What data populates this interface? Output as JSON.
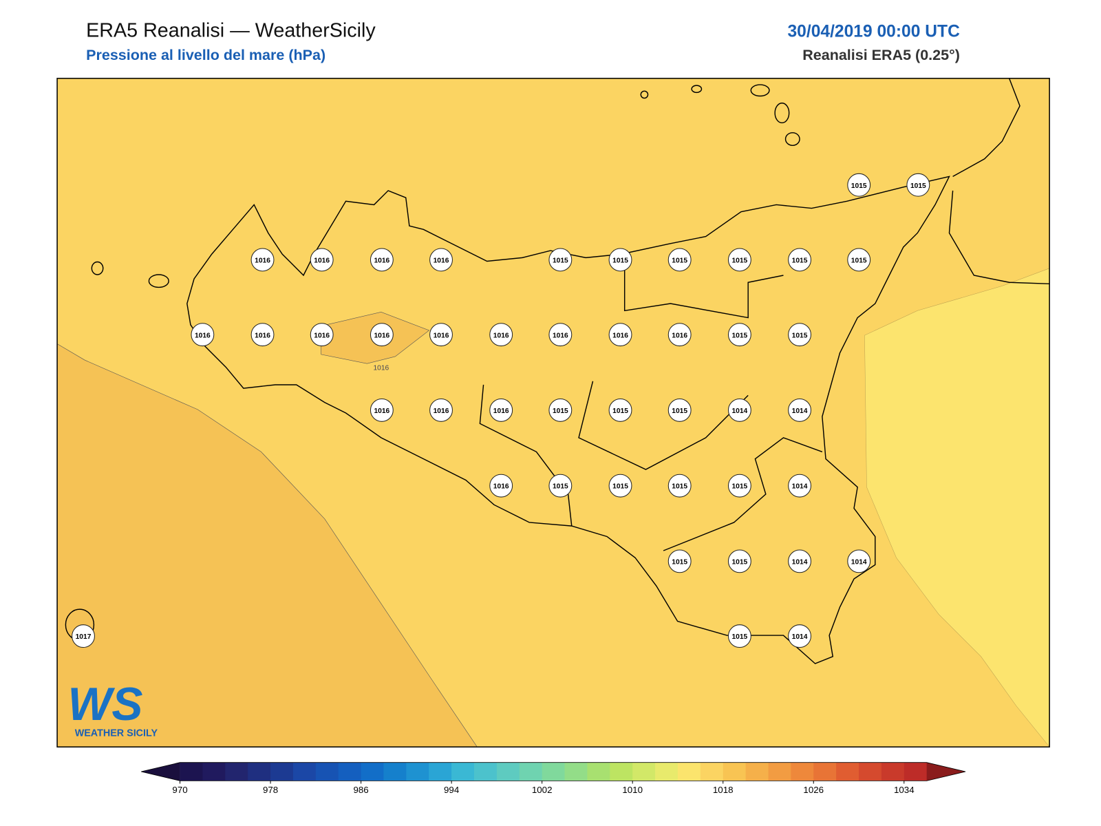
{
  "header": {
    "title": "ERA5 Reanalisi — WeatherSicily",
    "subtitle": "Pressione al livello del mare (hPa)",
    "date": "30/04/2019 00:00 UTC",
    "source": "Reanalisi ERA5 (0.25°)"
  },
  "stations": [
    1015,
    1015,
    1016,
    1016,
    1016,
    1016,
    1015,
    1015,
    1015,
    1015,
    1015,
    1015,
    1016,
    1016,
    1016,
    1016,
    1016,
    1016,
    1016,
    1016,
    1016,
    1015,
    1015,
    1016,
    1016,
    1016,
    1015,
    1015,
    1015,
    1014,
    1014,
    1016,
    1015,
    1015,
    1015,
    1015,
    1014,
    1015,
    1015,
    1014,
    1014,
    1017,
    1015,
    1014
  ],
  "contour_labels": [
    1016
  ],
  "colorbar": {
    "clim": [
      970,
      1036
    ],
    "ticks": [
      970,
      978,
      986,
      994,
      1002,
      1010,
      1018,
      1026,
      1034
    ],
    "colors": [
      "#1c1450",
      "#201a5e",
      "#22256e",
      "#1f2f80",
      "#1c3a92",
      "#1b47a6",
      "#1753b3",
      "#145fbf",
      "#126ec8",
      "#1580cc",
      "#1e92d1",
      "#2aa5d5",
      "#3ab8d4",
      "#4cc2cc",
      "#5ecbc0",
      "#6fd3b0",
      "#80d99c",
      "#93dd88",
      "#a8e070",
      "#bde462",
      "#d2e868",
      "#e8ea6c",
      "#fbe46d",
      "#fbd462",
      "#f8c453",
      "#f5b04a",
      "#f29c42",
      "#ee883b",
      "#e87436",
      "#e05d31",
      "#d54a2e",
      "#c93a2b",
      "#bd2c28"
    ],
    "under": "#1a0f3d",
    "over": "#8a1c1c"
  },
  "logo": {
    "mark": "WS",
    "name": "WEATHER SICILY"
  }
}
